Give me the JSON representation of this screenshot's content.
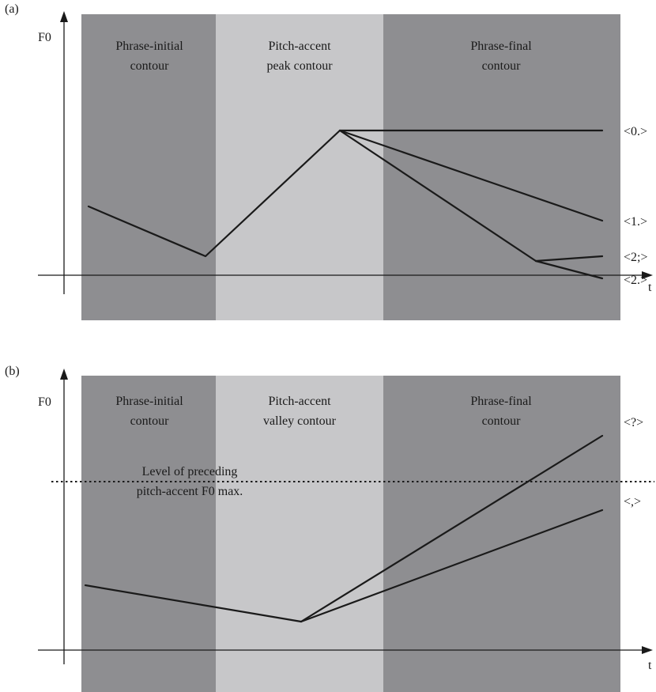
{
  "colors": {
    "dark_band": "#8e8e91",
    "light_band": "#c7c7c9",
    "line": "#1a1a1a",
    "background": "#ffffff"
  },
  "panel_a": {
    "label": "(a)",
    "y_axis_label": "F0",
    "x_axis_label": "t",
    "regions": {
      "initial": [
        "Phrase-initial",
        "contour"
      ],
      "accent": [
        "Pitch-accent",
        "peak contour"
      ],
      "final": [
        "Phrase-final",
        "contour"
      ]
    },
    "contour_labels": {
      "c0": "<0.>",
      "c1": "<1.>",
      "c2s": "<2;>",
      "c2": "<2.>"
    }
  },
  "panel_b": {
    "label": "(b)",
    "y_axis_label": "F0",
    "x_axis_label": "t",
    "regions": {
      "initial": [
        "Phrase-initial",
        "contour"
      ],
      "accent": [
        "Pitch-accent",
        "valley contour"
      ],
      "final": [
        "Phrase-final",
        "contour"
      ]
    },
    "reference_line": [
      "Level of preceding",
      "pitch-accent F0 max."
    ],
    "contour_labels": {
      "question": "<?>",
      "comma": "<,>"
    }
  }
}
